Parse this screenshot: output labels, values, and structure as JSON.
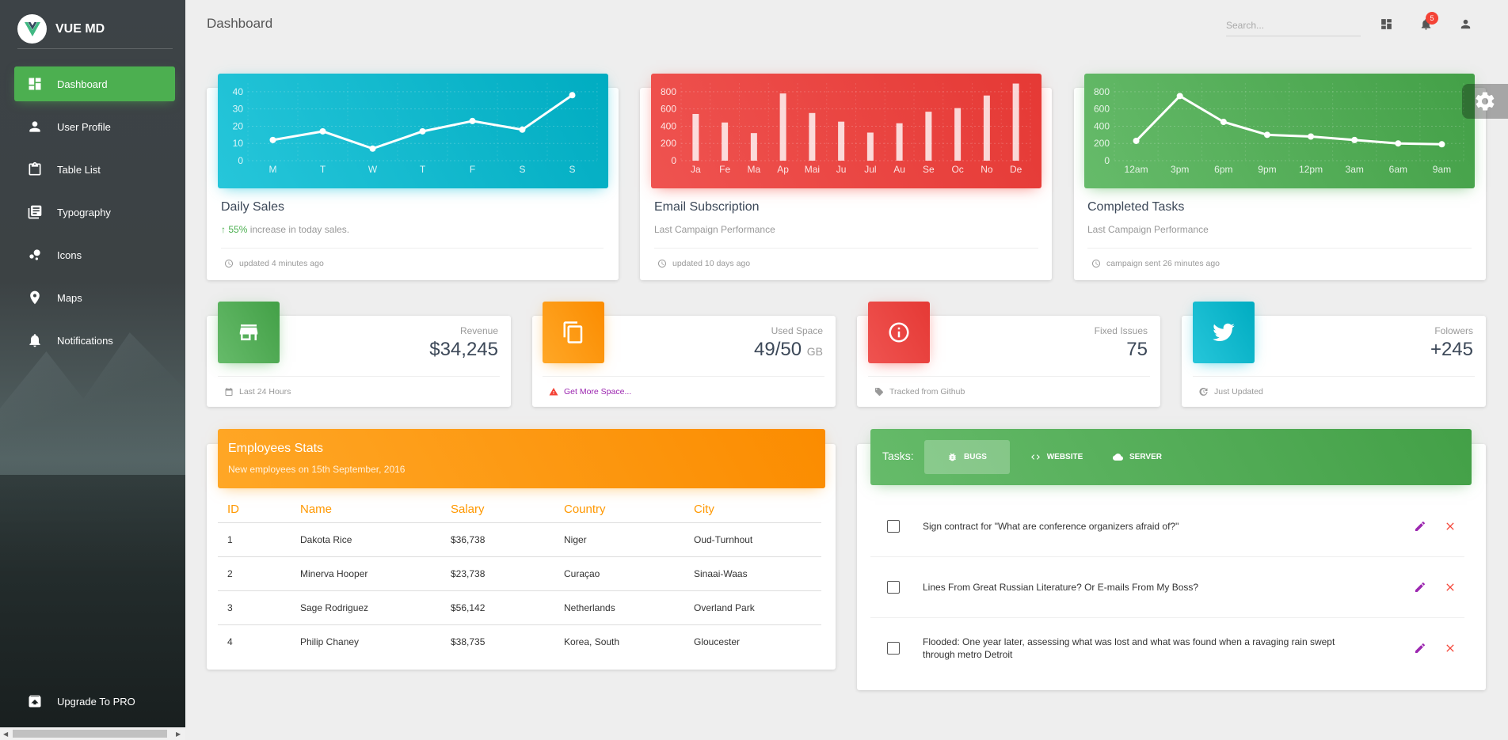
{
  "app": {
    "name": "VUE MD"
  },
  "sidebar": {
    "items": [
      {
        "label": "Dashboard",
        "icon": "dashboard-icon",
        "active": true
      },
      {
        "label": "User Profile",
        "icon": "person-icon"
      },
      {
        "label": "Table List",
        "icon": "clipboard-icon"
      },
      {
        "label": "Typography",
        "icon": "library-books-icon"
      },
      {
        "label": "Icons",
        "icon": "bubble-chart-icon"
      },
      {
        "label": "Maps",
        "icon": "location-pin-icon"
      },
      {
        "label": "Notifications",
        "icon": "bell-icon"
      }
    ],
    "upgrade": "Upgrade To PRO"
  },
  "header": {
    "title": "Dashboard",
    "search_placeholder": "Search...",
    "notification_count": "5"
  },
  "chart_data": [
    {
      "type": "line",
      "title": "Daily Sales",
      "categories": [
        "M",
        "T",
        "W",
        "T",
        "F",
        "S",
        "S"
      ],
      "values": [
        12,
        17,
        7,
        17,
        23,
        18,
        38
      ],
      "yticks": [
        0,
        10,
        20,
        30,
        40
      ],
      "ylim": [
        0,
        45
      ],
      "color": "#26c6da",
      "grid": true
    },
    {
      "type": "bar",
      "title": "Email Subscription",
      "categories": [
        "Ja",
        "Fe",
        "Ma",
        "Ap",
        "Mai",
        "Ju",
        "Jul",
        "Au",
        "Se",
        "Oc",
        "No",
        "De"
      ],
      "values": [
        542,
        443,
        320,
        780,
        553,
        453,
        326,
        434,
        568,
        610,
        756,
        895
      ],
      "yticks": [
        0,
        200,
        400,
        600,
        800
      ],
      "ylim": [
        0,
        900
      ],
      "color": "#ef5350",
      "grid": true
    },
    {
      "type": "line",
      "title": "Completed Tasks",
      "categories": [
        "12am",
        "3pm",
        "6pm",
        "9pm",
        "12pm",
        "3am",
        "6am",
        "9am"
      ],
      "values": [
        230,
        750,
        450,
        300,
        280,
        240,
        200,
        190
      ],
      "yticks": [
        0,
        200,
        400,
        600,
        800
      ],
      "ylim": [
        0,
        900
      ],
      "color": "#66bb6a",
      "grid": true
    }
  ],
  "chart_cards": [
    {
      "title": "Daily Sales",
      "sub_up": "55%",
      "sub_rest": " increase in today sales.",
      "footer": "updated 4 minutes ago"
    },
    {
      "title": "Email Subscription",
      "sub": "Last Campaign Performance",
      "footer": "updated 10 days ago"
    },
    {
      "title": "Completed Tasks",
      "sub": "Last Campaign Performance",
      "footer": "campaign sent 26 minutes ago"
    }
  ],
  "stats": [
    {
      "label": "Revenue",
      "value": "$34,245",
      "footer": "Last 24 Hours",
      "icon": "store-icon",
      "color": "#4caf50"
    },
    {
      "label": "Used Space",
      "value": "49/50",
      "unit": "GB",
      "footer": "Get More Space...",
      "icon": "copy-icon",
      "color": "#ff9800"
    },
    {
      "label": "Fixed Issues",
      "value": "75",
      "footer": "Tracked from Github",
      "icon": "info-icon",
      "color": "#f44336"
    },
    {
      "label": "Folowers",
      "value": "+245",
      "footer": "Just Updated",
      "icon": "twitter-icon",
      "color": "#00bcd4"
    }
  ],
  "employees": {
    "title": "Employees Stats",
    "subtitle": "New employees on 15th September, 2016",
    "columns": [
      "ID",
      "Name",
      "Salary",
      "Country",
      "City"
    ],
    "rows": [
      [
        "1",
        "Dakota Rice",
        "$36,738",
        "Niger",
        "Oud-Turnhout"
      ],
      [
        "2",
        "Minerva Hooper",
        "$23,738",
        "Curaçao",
        "Sinaai-Waas"
      ],
      [
        "3",
        "Sage Rodriguez",
        "$56,142",
        "Netherlands",
        "Overland Park"
      ],
      [
        "4",
        "Philip Chaney",
        "$38,735",
        "Korea, South",
        "Gloucester"
      ]
    ]
  },
  "tasks": {
    "label": "Tasks:",
    "tabs": [
      "BUGS",
      "WEBSITE",
      "SERVER"
    ],
    "items": [
      "Sign contract for \"What are conference organizers afraid of?\"",
      "Lines From Great Russian Literature? Or E-mails From My Boss?",
      "Flooded: One year later, assessing what was lost and what was found when a ravaging rain swept through metro Detroit"
    ]
  }
}
